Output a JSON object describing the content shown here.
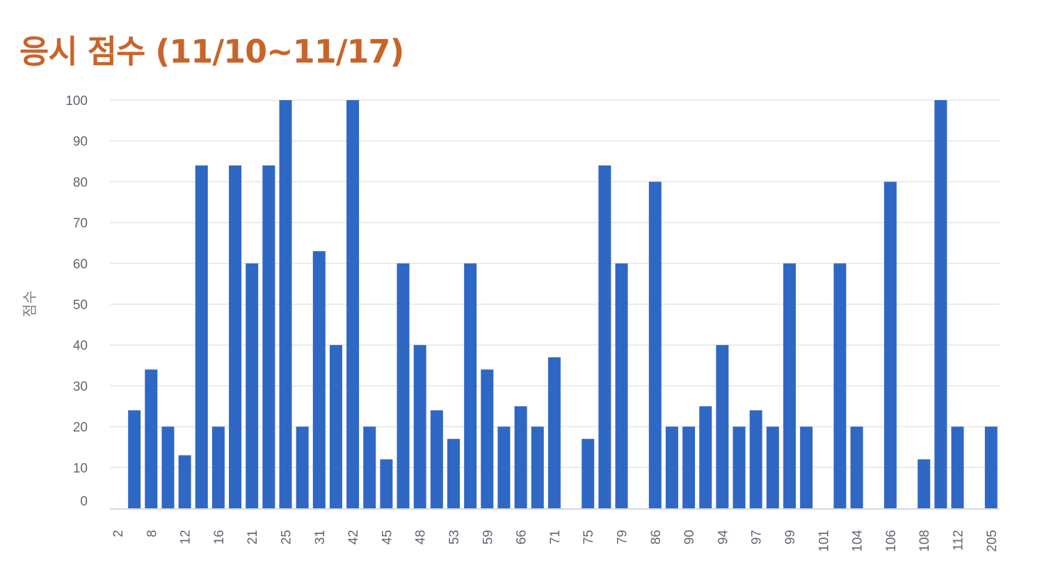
{
  "title": "응시 점수 (11/10~11/17)",
  "colors": {
    "title": "#c8642a",
    "bar": "#2f67c5",
    "grid": "#e3e5e8",
    "axis": "#c9ccd1"
  },
  "chart_data": {
    "type": "bar",
    "title": "응시 점수 (11/10~11/17)",
    "xlabel": "",
    "ylabel": "점수",
    "ylim": [
      0,
      100
    ],
    "yticks": [
      0,
      10,
      20,
      30,
      40,
      50,
      60,
      70,
      80,
      90,
      100
    ],
    "grid": true,
    "categories": [
      "2",
      "",
      "8",
      "",
      "12",
      "",
      "16",
      "",
      "21",
      "",
      "25",
      "",
      "31",
      "",
      "42",
      "",
      "45",
      "",
      "48",
      "",
      "53",
      "",
      "59",
      "",
      "66",
      "",
      "71",
      "",
      "75",
      "",
      "79",
      "",
      "86",
      "",
      "90",
      "",
      "94",
      "",
      "97",
      "",
      "99",
      "",
      "101",
      "",
      "104",
      "",
      "106",
      "",
      "108",
      "",
      "112",
      "",
      "205"
    ],
    "values": [
      0,
      24,
      34,
      20,
      13,
      84,
      20,
      84,
      60,
      84,
      100,
      20,
      63,
      40,
      100,
      20,
      12,
      60,
      40,
      24,
      17,
      60,
      34,
      20,
      25,
      20,
      37,
      0,
      17,
      84,
      60,
      0,
      80,
      20,
      20,
      25,
      40,
      20,
      24,
      20,
      60,
      20,
      0,
      60,
      20,
      0,
      80,
      0,
      12,
      100,
      20,
      0,
      20
    ]
  }
}
